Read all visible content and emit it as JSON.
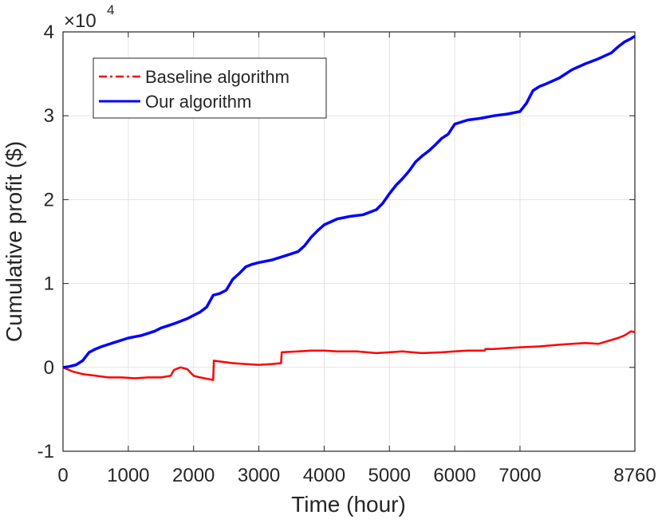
{
  "chart_data": {
    "type": "line",
    "title": "",
    "xlabel": "Time (hour)",
    "ylabel": "Cumulative profit ($)",
    "y_exponent_label": "×10",
    "y_exponent_power": "4",
    "xlim": [
      0,
      8760
    ],
    "ylim": [
      -1,
      4
    ],
    "x_ticks": [
      0,
      1000,
      2000,
      3000,
      4000,
      5000,
      6000,
      7000,
      8760
    ],
    "x_tick_labels": [
      "0",
      "1000",
      "2000",
      "3000",
      "4000",
      "5000",
      "6000",
      "7000",
      "8760"
    ],
    "y_ticks": [
      -1,
      0,
      1,
      2,
      3,
      4
    ],
    "y_tick_labels": [
      "-1",
      "0",
      "1",
      "2",
      "3",
      "4"
    ],
    "grid": true,
    "legend_position": "top-left",
    "series": [
      {
        "name": "Baseline algorithm",
        "color": "#ff0000",
        "style": "dash-dot",
        "x": [
          0,
          150,
          300,
          500,
          700,
          900,
          1100,
          1300,
          1500,
          1650,
          1700,
          1800,
          1900,
          2000,
          2100,
          2300,
          2310,
          2400,
          2600,
          2800,
          3000,
          3200,
          3340,
          3350,
          3600,
          3800,
          4000,
          4200,
          4500,
          4800,
          5000,
          5200,
          5500,
          5800,
          6000,
          6200,
          6460,
          6470,
          6600,
          6800,
          7000,
          7300,
          7600,
          7800,
          8000,
          8200,
          8500,
          8600,
          8700,
          8760
        ],
        "values": [
          0,
          -0.05,
          -0.08,
          -0.1,
          -0.12,
          -0.12,
          -0.13,
          -0.12,
          -0.12,
          -0.1,
          -0.03,
          0.0,
          -0.02,
          -0.1,
          -0.12,
          -0.15,
          0.08,
          0.07,
          0.05,
          0.04,
          0.03,
          0.04,
          0.05,
          0.18,
          0.19,
          0.2,
          0.2,
          0.19,
          0.19,
          0.17,
          0.18,
          0.19,
          0.17,
          0.18,
          0.19,
          0.2,
          0.2,
          0.22,
          0.22,
          0.23,
          0.24,
          0.25,
          0.27,
          0.28,
          0.29,
          0.28,
          0.35,
          0.38,
          0.43,
          0.42
        ]
      },
      {
        "name": "Our algorithm",
        "color": "#0000ff",
        "style": "solid",
        "x": [
          0,
          100,
          200,
          300,
          400,
          500,
          600,
          800,
          1000,
          1200,
          1400,
          1500,
          1700,
          1900,
          2000,
          2100,
          2200,
          2300,
          2400,
          2500,
          2600,
          2700,
          2800,
          2900,
          3000,
          3200,
          3400,
          3600,
          3700,
          3800,
          3900,
          4000,
          4200,
          4400,
          4600,
          4800,
          4900,
          5000,
          5100,
          5200,
          5300,
          5400,
          5500,
          5600,
          5700,
          5800,
          5900,
          6000,
          6200,
          6400,
          6600,
          6800,
          7000,
          7100,
          7200,
          7300,
          7400,
          7600,
          7800,
          8000,
          8200,
          8400,
          8500,
          8600,
          8700,
          8760
        ],
        "values": [
          0,
          0.01,
          0.03,
          0.08,
          0.18,
          0.22,
          0.25,
          0.3,
          0.35,
          0.38,
          0.43,
          0.47,
          0.52,
          0.58,
          0.62,
          0.66,
          0.72,
          0.86,
          0.88,
          0.92,
          1.05,
          1.12,
          1.2,
          1.23,
          1.25,
          1.28,
          1.33,
          1.38,
          1.45,
          1.55,
          1.63,
          1.7,
          1.77,
          1.8,
          1.82,
          1.88,
          1.96,
          2.07,
          2.17,
          2.25,
          2.34,
          2.45,
          2.52,
          2.58,
          2.65,
          2.73,
          2.78,
          2.9,
          2.95,
          2.97,
          3.0,
          3.02,
          3.05,
          3.15,
          3.3,
          3.35,
          3.38,
          3.45,
          3.55,
          3.62,
          3.68,
          3.75,
          3.82,
          3.88,
          3.92,
          3.95
        ]
      }
    ]
  }
}
